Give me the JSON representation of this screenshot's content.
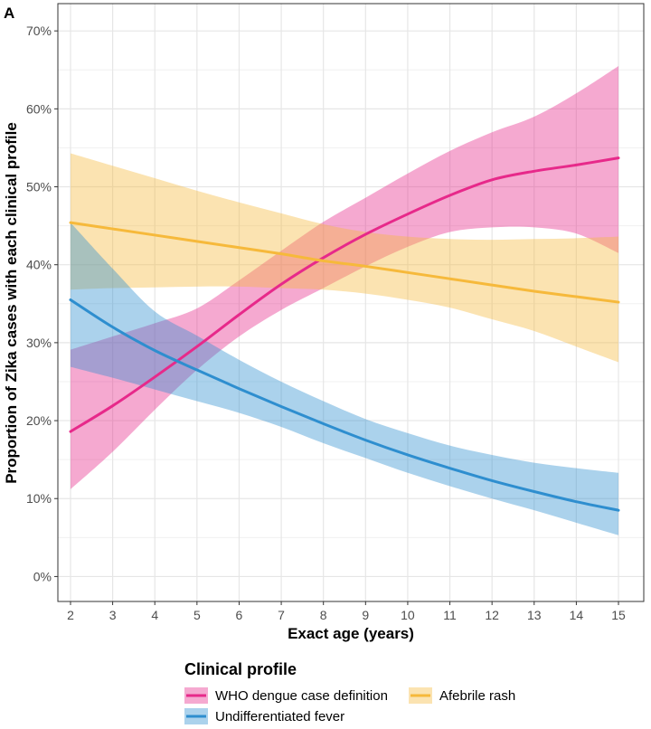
{
  "chart_data": {
    "type": "line",
    "panel_label": "A",
    "title": "",
    "xlabel": "Exact age (years)",
    "ylabel": "Proportion of Zika cases with each clinical profile",
    "x_ticks": [
      2,
      3,
      4,
      5,
      6,
      7,
      8,
      9,
      10,
      11,
      12,
      13,
      14,
      15
    ],
    "y_ticks": [
      "0%",
      "10%",
      "20%",
      "30%",
      "40%",
      "50%",
      "60%",
      "70%"
    ],
    "xlim": [
      1.7,
      15.6
    ],
    "ylim": [
      -3.2,
      73.5
    ],
    "grid": true,
    "legend": {
      "title": "Clinical profile",
      "placement": "bottom",
      "entries": [
        "WHO dengue case definition",
        "Afebrile rash",
        "Undifferentiated fever"
      ]
    },
    "series": [
      {
        "name": "WHO dengue case definition",
        "color": "#e7298a",
        "x": [
          2,
          3,
          4,
          5,
          6,
          7,
          8,
          9,
          10,
          11,
          12,
          13,
          14,
          15
        ],
        "y": [
          18.6,
          21.9,
          25.6,
          29.5,
          33.6,
          37.5,
          40.9,
          43.9,
          46.5,
          48.9,
          50.9,
          52.0,
          52.8,
          53.7
        ],
        "lower": [
          11.2,
          16.0,
          21.4,
          26.5,
          30.8,
          34.2,
          37.0,
          39.8,
          42.3,
          44.2,
          44.8,
          44.8,
          44.0,
          41.5
        ],
        "upper": [
          29.1,
          30.8,
          32.5,
          34.4,
          38.0,
          41.8,
          45.5,
          48.6,
          51.7,
          54.6,
          57.0,
          59.0,
          62.0,
          65.5
        ]
      },
      {
        "name": "Afebrile rash",
        "color": "#f6b93b",
        "x": [
          2,
          3,
          4,
          5,
          6,
          7,
          8,
          9,
          10,
          11,
          12,
          13,
          14,
          15
        ],
        "y": [
          45.4,
          44.6,
          43.8,
          43.0,
          42.2,
          41.4,
          40.5,
          39.8,
          39.0,
          38.2,
          37.4,
          36.6,
          35.9,
          35.2
        ],
        "lower": [
          36.8,
          37.0,
          37.1,
          37.2,
          37.2,
          37.0,
          36.8,
          36.3,
          35.5,
          34.5,
          33.0,
          31.5,
          29.5,
          27.5
        ],
        "upper": [
          54.3,
          52.7,
          51.1,
          49.5,
          48.0,
          46.6,
          45.2,
          44.2,
          43.6,
          43.3,
          43.2,
          43.3,
          43.4,
          43.6
        ]
      },
      {
        "name": "Undifferentiated fever",
        "color": "#2e8ecf",
        "x": [
          2,
          3,
          4,
          5,
          6,
          7,
          8,
          9,
          10,
          11,
          12,
          13,
          14,
          15
        ],
        "y": [
          35.5,
          32.0,
          29.0,
          26.5,
          24.1,
          21.8,
          19.6,
          17.5,
          15.6,
          13.9,
          12.3,
          10.9,
          9.6,
          8.5
        ],
        "lower": [
          26.9,
          25.5,
          24.0,
          22.5,
          21.0,
          19.2,
          17.1,
          15.2,
          13.3,
          11.6,
          10.0,
          8.5,
          6.9,
          5.3
        ],
        "upper": [
          45.4,
          39.5,
          34.0,
          30.9,
          27.8,
          25.0,
          22.5,
          20.2,
          18.4,
          16.8,
          15.6,
          14.6,
          13.9,
          13.3
        ]
      }
    ]
  }
}
